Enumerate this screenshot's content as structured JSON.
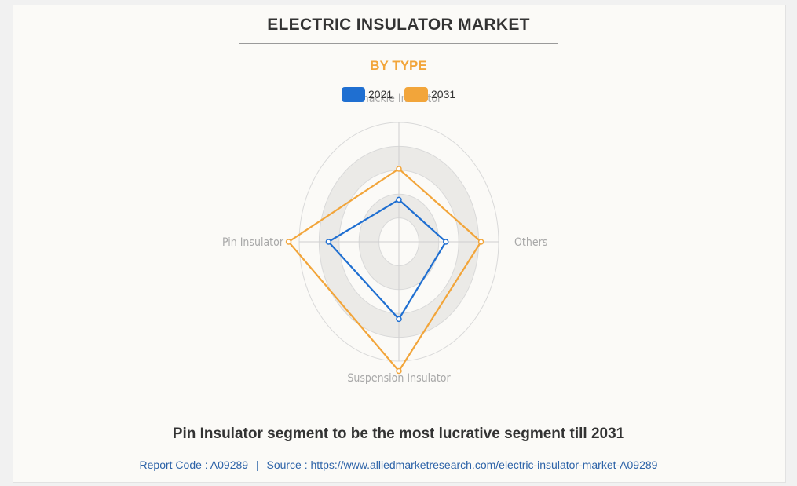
{
  "header": {
    "title": "ELECTRIC INSULATOR MARKET",
    "subtitle": "BY TYPE"
  },
  "chart_data": {
    "type": "radar",
    "axes": [
      "Shackle Insulator",
      "Others",
      "Suspension Insulator",
      "Pin Insulator"
    ],
    "series": [
      {
        "name": "2021",
        "color": "#1f6fd1",
        "values": [
          3.0,
          4.0,
          5.5,
          6.0
        ]
      },
      {
        "name": "2031",
        "color": "#f2a53a",
        "values": [
          5.2,
          7.0,
          9.2,
          9.4
        ]
      }
    ],
    "rmax": 8.5,
    "grid_rings": 5,
    "legend_position": "top"
  },
  "footer": {
    "caption": "Pin Insulator segment to be the most lucrative segment till 2031",
    "report_code": "Report Code : A09289",
    "separator": "|",
    "source": "Source : https://www.alliedmarketresearch.com/electric-insulator-market-A09289"
  }
}
